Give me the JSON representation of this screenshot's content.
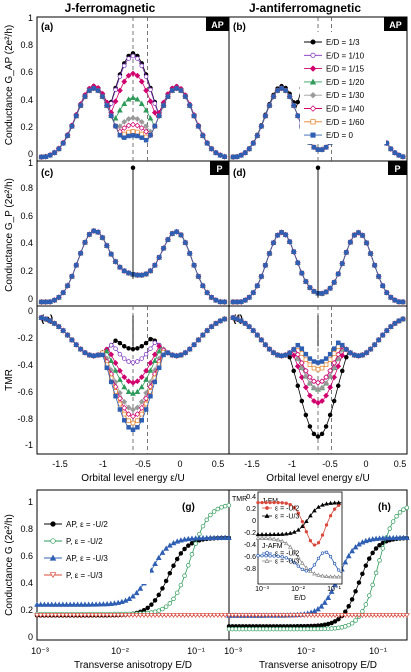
{
  "titles": {
    "left": "J-ferromagnetic",
    "right": "J-antiferromagnetic"
  },
  "badges": {
    "ap": "AP",
    "p": "P"
  },
  "panel_labels": {
    "a": "(a)",
    "b": "(b)",
    "c": "(c)",
    "d": "(d)",
    "e": "(e)",
    "f": "(f)",
    "g": "(g)",
    "h": "(h)"
  },
  "axis_labels": {
    "gap": "Conductance G_AP (2e²/h)",
    "gp": "Conductance G_P (2e²/h)",
    "tmr": "TMR",
    "eps": "Orbital level energy ε/U",
    "g_bottom": "Conductance G (2e²/h)",
    "aniso": "Transverse anisotropy E/D",
    "inset_y": "TMR",
    "inset_x": "E/D"
  },
  "legend_top": [
    {
      "label": "E/D = 1/3",
      "color": "#000000",
      "marker": "circle-filled"
    },
    {
      "label": "E/D = 1/10",
      "color": "#7b2fbe",
      "marker": "circle-open"
    },
    {
      "label": "E/D = 1/15",
      "color": "#d1006e",
      "marker": "diamond-filled"
    },
    {
      "label": "E/D = 1/20",
      "color": "#2e9b5a",
      "marker": "triangle-filled"
    },
    {
      "label": "E/D = 1/30",
      "color": "#9a9a9a",
      "marker": "diamond-filled"
    },
    {
      "label": "E/D = 1/40",
      "color": "#d1006e",
      "marker": "diamond-open"
    },
    {
      "label": "E/D = 1/60",
      "color": "#e67e22",
      "marker": "square-open"
    },
    {
      "label": "E/D = 0",
      "color": "#2f5fb3",
      "marker": "square-filled"
    }
  ],
  "legend_g": [
    {
      "label": "AP, ε = -U/2",
      "color": "#000000",
      "marker": "circle-filled"
    },
    {
      "label": "P, ε = -U/2",
      "color": "#2e9b5a",
      "marker": "circle-open"
    },
    {
      "label": "AP, ε = -U/3",
      "color": "#2f5fb3",
      "marker": "triangle-filled"
    },
    {
      "label": "P, ε = -U/3",
      "color": "#d9483b",
      "marker": "triangle-down-open"
    }
  ],
  "inset": {
    "title_fm": "J-FM",
    "title_afm": "J-AFM",
    "entries_fm": [
      {
        "label": "ε = -U/2",
        "color": "#d9483b",
        "marker": "circle-filled"
      },
      {
        "label": "ε = -U/3",
        "color": "#000000",
        "marker": "triangle-filled"
      }
    ],
    "entries_afm": [
      {
        "label": "ε = -U/2",
        "color": "#2f5fb3",
        "marker": "circle-open"
      },
      {
        "label": "ε = -U/3",
        "color": "#888888",
        "marker": "triangle-open"
      }
    ],
    "yticks": [
      "0.4",
      "0.2",
      "0",
      "-0.2",
      "-0.4",
      "-0.6",
      "-0.8"
    ],
    "xticks": [
      "10⁻³",
      "10⁻²",
      "10⁻¹"
    ]
  },
  "chart_data": [
    {
      "panel": "a",
      "type": "line",
      "title": "J-ferromagnetic",
      "ylabel": "Conductance G_AP (2e²/h)",
      "xlim": [
        -1.6,
        0.6
      ],
      "ylim": [
        -0.02,
        1.05
      ],
      "yticks": [
        "0",
        "0.2",
        "0.4",
        "0.6",
        "0.8",
        "1"
      ],
      "vlines": [
        -0.5,
        -0.333
      ],
      "series_center_values": {
        "E/D = 1/3": 0.75,
        "E/D = 1/10": 0.73,
        "E/D = 1/15": 0.6,
        "E/D = 1/20": 0.45,
        "E/D = 1/30": 0.3,
        "E/D = 1/40": 0.25,
        "E/D = 1/60": 0.2,
        "E/D = 0": 0.17
      },
      "peaks": [
        {
          "x": -0.95,
          "y": 0.52
        },
        {
          "x": 0.0,
          "y": 0.52
        }
      ]
    },
    {
      "panel": "b",
      "type": "line",
      "title": "J-antiferromagnetic",
      "xlim": [
        -1.6,
        0.6
      ],
      "ylim": [
        -0.02,
        1.05
      ],
      "vlines": [
        -0.5,
        -0.333
      ],
      "series_center_values": {
        "E/D = 1/3": 0.75,
        "E/D = 1/10": 0.4,
        "E/D = 1/15": 0.2,
        "E/D = 1/20": 0.07,
        "E/D = 1/30": 0.03,
        "E/D = 1/40": 0.02,
        "E/D = 1/60": 0.01,
        "E/D = 0": 0.01
      }
    },
    {
      "panel": "c",
      "type": "line",
      "ylabel": "Conductance G_P (2e²/h)",
      "xlim": [
        -1.6,
        0.6
      ],
      "ylim": [
        -0.02,
        1.05
      ],
      "yticks": [
        "0",
        "0.2",
        "0.4",
        "0.6",
        "0.8",
        "1"
      ],
      "peaks": [
        {
          "x": -0.95,
          "y": 0.52
        },
        {
          "x": 0.0,
          "y": 0.52
        }
      ],
      "spike": {
        "x": -0.5,
        "y": 1.0
      },
      "baseline_center": 0.18
    },
    {
      "panel": "d",
      "type": "line",
      "xlim": [
        -1.6,
        0.6
      ],
      "ylim": [
        -0.02,
        1.05
      ],
      "peaks": [
        {
          "x": -0.95,
          "y": 0.52
        },
        {
          "x": 0.0,
          "y": 0.52
        }
      ],
      "spike": {
        "x": -0.5,
        "y": 1.0
      },
      "baseline_center": 0.04
    },
    {
      "panel": "e",
      "type": "line",
      "ylabel": "TMR",
      "xlabel": "Orbital level energy ε/U",
      "xlim": [
        -1.6,
        0.6
      ],
      "ylim": [
        -1.05,
        0.05
      ],
      "yticks": [
        "0",
        "-0.2",
        "-0.4",
        "-0.6",
        "-0.8",
        "-1"
      ],
      "xticks": [
        "-1.5",
        "-1",
        "-0.5",
        "0",
        "0.5"
      ],
      "series_center_values": {
        "E/D = 1/3": -0.25,
        "E/D = 1/10": -0.35,
        "E/D = 1/15": -0.5,
        "E/D = 1/20": -0.58,
        "E/D = 1/30": -0.7,
        "E/D = 1/40": -0.75,
        "E/D = 1/60": -0.8,
        "E/D = 0": -0.85
      }
    },
    {
      "panel": "f",
      "type": "line",
      "xlabel": "Orbital level energy ε/U",
      "xlim": [
        -1.6,
        0.6
      ],
      "ylim": [
        -1.05,
        0.05
      ],
      "xticks": [
        "-1.5",
        "-1",
        "-0.5",
        "0",
        "0.5"
      ],
      "series_center_values": {
        "E/D = 1/3": -0.9,
        "E/D = 1/10": -0.5,
        "E/D = 1/15": -0.65,
        "E/D = 1/20": -0.55,
        "E/D = 1/30": -0.55,
        "E/D = 1/40": -0.5,
        "E/D = 1/60": -0.4,
        "E/D = 0": -0.35
      }
    },
    {
      "panel": "g",
      "type": "line",
      "xscale": "log",
      "xlim": [
        0.001,
        0.4
      ],
      "ylim": [
        0,
        1.1
      ],
      "ylabel": "Conductance G (2e²/h)",
      "xlabel": "Transverse anisotropy E/D",
      "yticks": [
        "0",
        "0.2",
        "0.4",
        "0.6",
        "0.8",
        "1"
      ],
      "xticks": [
        "10⁻³",
        "10⁻²",
        "10⁻¹"
      ],
      "series": [
        {
          "name": "AP, ε = -U/2",
          "low": 0.18,
          "high": 0.75,
          "midpoint": 0.06
        },
        {
          "name": "P, ε = -U/2",
          "low": 0.19,
          "high": 1.0,
          "midpoint": 0.12
        },
        {
          "name": "AP, ε = -U/3",
          "low": 0.26,
          "high": 0.75,
          "midpoint": 0.035
        },
        {
          "name": "P, ε = -U/3",
          "low": 0.18,
          "high": 0.18,
          "midpoint": 0.1
        }
      ]
    },
    {
      "panel": "h",
      "type": "line",
      "xscale": "log",
      "xlim": [
        0.001,
        0.4
      ],
      "ylim": [
        0,
        1.1
      ],
      "xlabel": "Transverse anisotropy E/D",
      "xticks": [
        "10⁻³",
        "10⁻²",
        "10⁻¹"
      ],
      "series": [
        {
          "name": "AP, ε = -U/2",
          "low": 0.1,
          "high": 0.75,
          "midpoint": 0.08
        },
        {
          "name": "P, ε = -U/2",
          "low": 0.08,
          "high": 1.0,
          "midpoint": 0.15
        },
        {
          "name": "AP, ε = -U/3",
          "low": 0.18,
          "high": 0.75,
          "midpoint": 0.04
        },
        {
          "name": "P, ε = -U/3",
          "low": 0.18,
          "high": 0.18,
          "midpoint": 0.1
        }
      ]
    }
  ]
}
